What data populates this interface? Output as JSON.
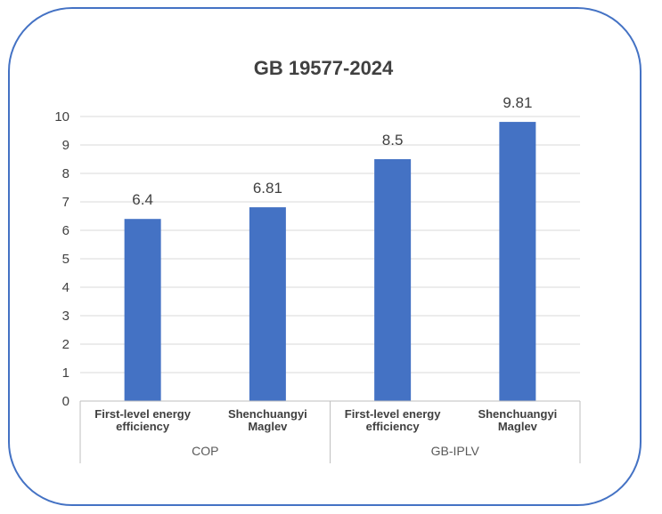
{
  "chart_data": {
    "type": "bar",
    "title": "GB 19577-2024",
    "groups": [
      {
        "label": "COP",
        "categories": [
          "First-level energy efficiency",
          "Shenchuangyi Maglev"
        ]
      },
      {
        "label": "GB-IPLV",
        "categories": [
          "First-level energy efficiency",
          "Shenchuangyi Maglev"
        ]
      }
    ],
    "category_lines": [
      [
        "First-level energy",
        "efficiency"
      ],
      [
        "Shenchuangyi",
        "Maglev"
      ],
      [
        "First-level energy",
        "efficiency"
      ],
      [
        "Shenchuangyi",
        "Maglev"
      ]
    ],
    "values": [
      6.4,
      6.81,
      8.5,
      9.81
    ],
    "data_labels": [
      "6.4",
      "6.81",
      "8.5",
      "9.81"
    ],
    "ylim": [
      0,
      10
    ],
    "yticks": [
      0,
      1,
      2,
      3,
      4,
      5,
      6,
      7,
      8,
      9,
      10
    ],
    "grid": true,
    "legend": "none",
    "bar_color": "#4472C4"
  }
}
